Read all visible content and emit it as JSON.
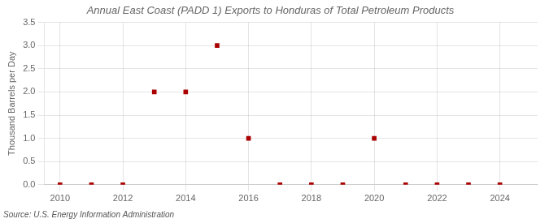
{
  "chart_data": {
    "type": "scatter",
    "title": "Annual East Coast (PADD 1) Exports to Honduras of Total Petroleum Products",
    "ylabel": "Thousand Barrels per Day",
    "annotations": [
      "Source: U.S. Energy Information Administration"
    ],
    "x": [
      2010,
      2011,
      2012,
      2013,
      2014,
      2015,
      2016,
      2017,
      2018,
      2019,
      2020,
      2021,
      2022,
      2023,
      2024
    ],
    "values": [
      0.0,
      0.0,
      0.0,
      2.0,
      2.0,
      3.0,
      1.0,
      0.0,
      0.0,
      0.0,
      1.0,
      0.0,
      0.0,
      0.0,
      0.0
    ],
    "color": "#aa0000",
    "marker": "square",
    "xlim": [
      2009.5,
      2025.2
    ],
    "ylim": [
      0.0,
      3.5
    ],
    "xticks": [
      2010,
      2012,
      2014,
      2016,
      2018,
      2020,
      2022,
      2024
    ],
    "yticks": [
      {
        "value": 0,
        "label": "0.0"
      },
      0.5,
      {
        "value": 1,
        "label": "1.0"
      },
      1.5,
      {
        "value": 2,
        "label": "2.0"
      },
      2.5,
      {
        "value": 3,
        "label": "3.0"
      },
      3.5
    ],
    "grid": true
  }
}
